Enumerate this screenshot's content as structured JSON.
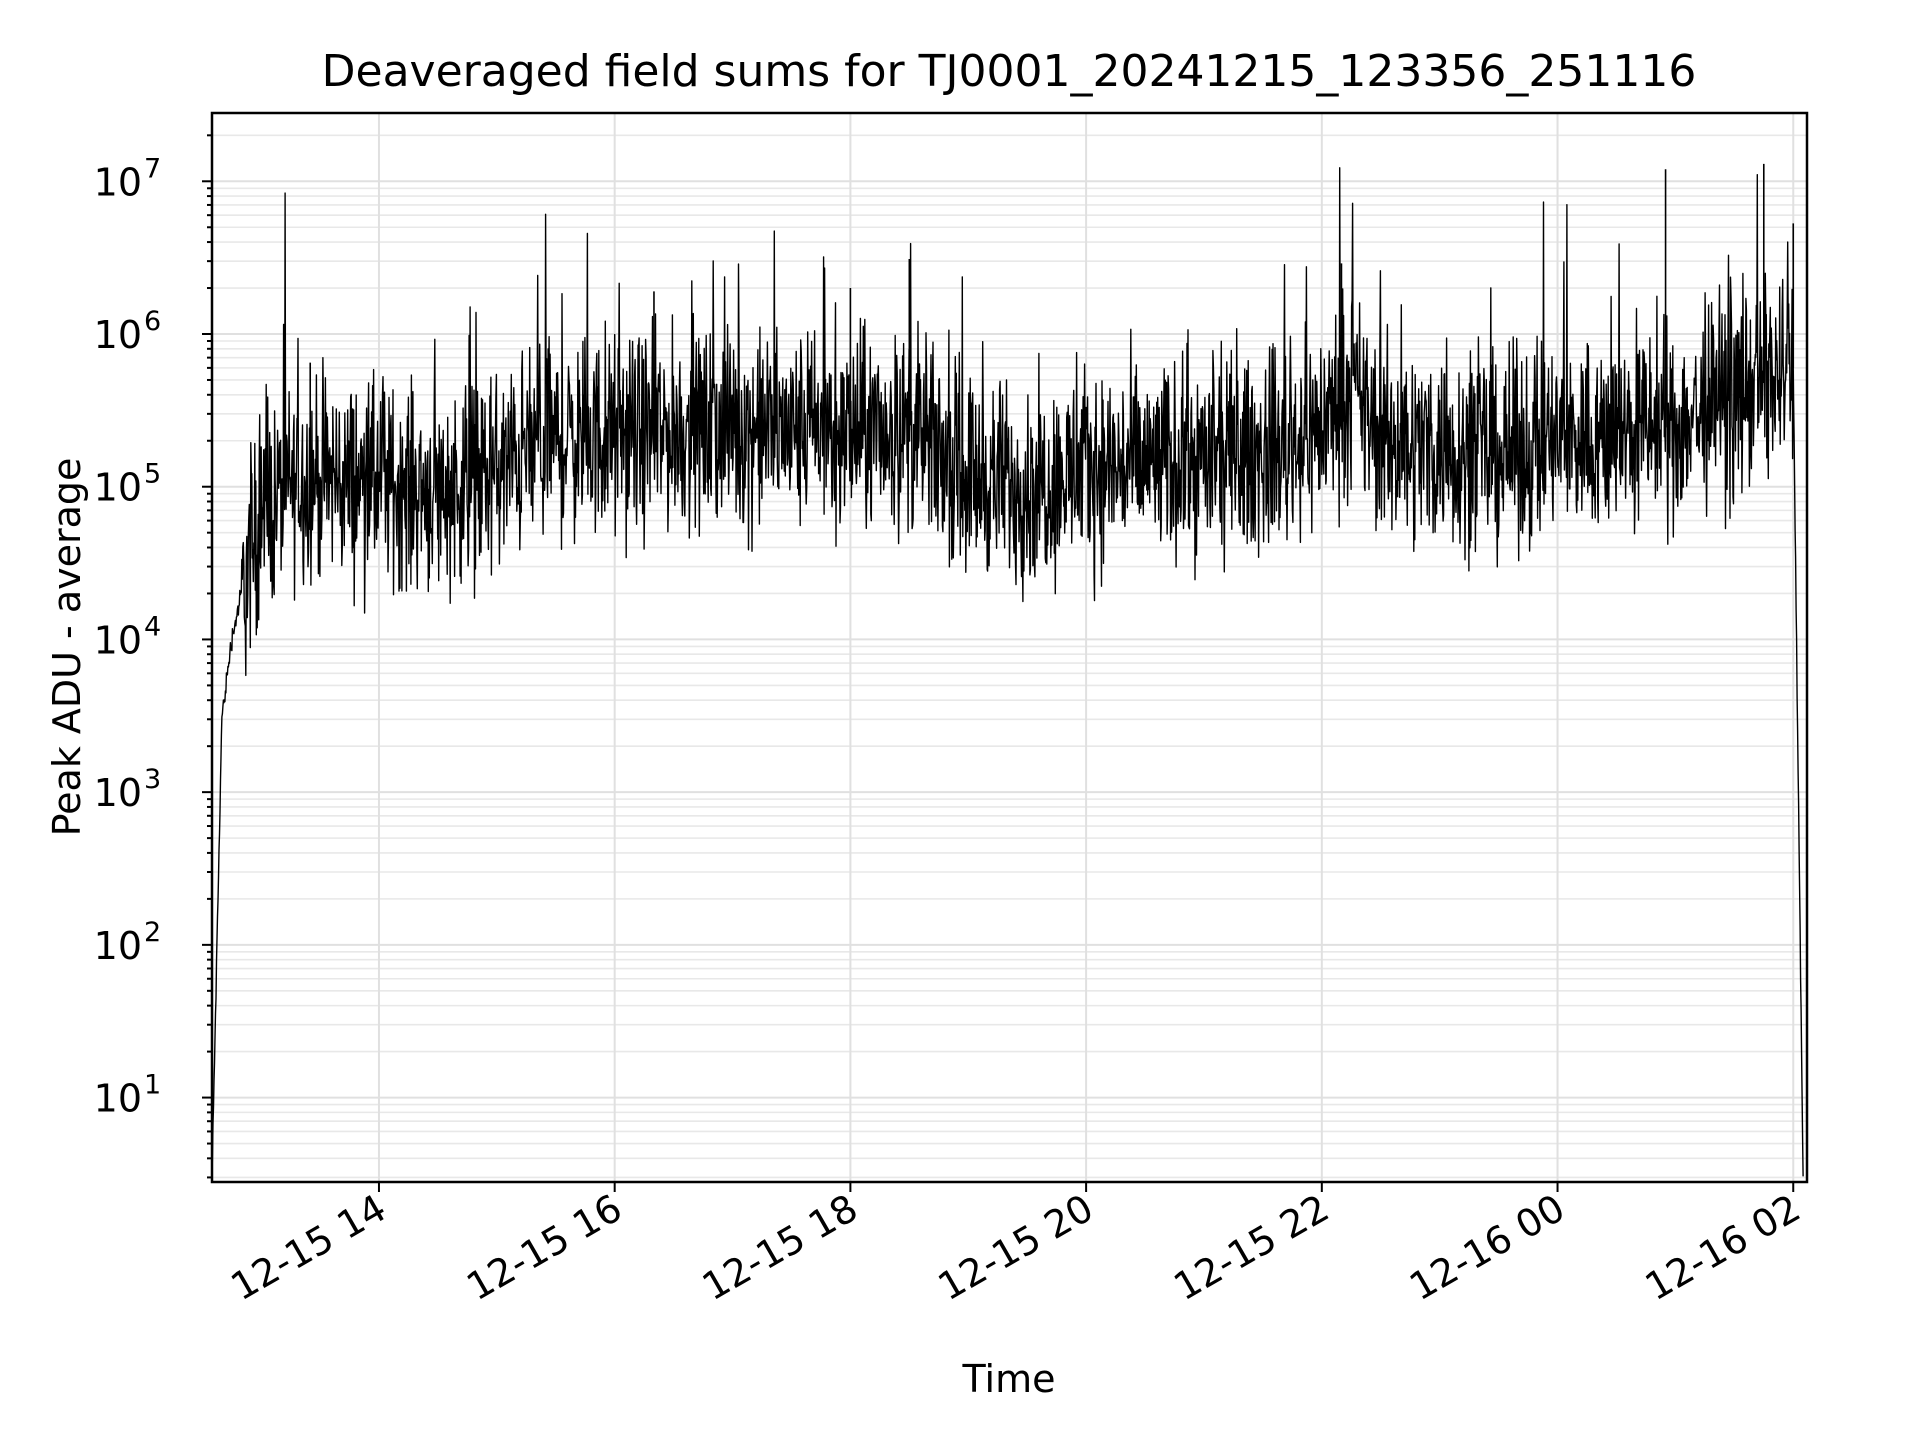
{
  "chart_data": {
    "type": "line",
    "title": "Deaveraged field sums for TJ0001_20241215_123356_251116",
    "xlabel": "Time",
    "ylabel": "Peak ADU - average",
    "yscale": "log",
    "grid": true,
    "x_ticks": [
      "12-15 14",
      "12-15 16",
      "12-15 18",
      "12-15 20",
      "12-15 22",
      "12-16 00",
      "12-16 02"
    ],
    "y_tick_exponents": [
      1,
      2,
      3,
      4,
      5,
      6,
      7
    ],
    "xlim": [
      "2024-12-15 12:35",
      "2024-12-16 02:07"
    ],
    "ylim": [
      2.8,
      28000000
    ],
    "series": [
      {
        "color": "#000000",
        "x": [
          "2024-12-15 12:35",
          "2024-12-15 12:40",
          "2024-12-15 12:45",
          "2024-12-15 12:50",
          "2024-12-15 13:00",
          "2024-12-15 13:10",
          "2024-12-15 13:20",
          "2024-12-15 13:30",
          "2024-12-15 13:45",
          "2024-12-15 14:00",
          "2024-12-15 14:15",
          "2024-12-15 14:30",
          "2024-12-15 14:45",
          "2024-12-15 15:00",
          "2024-12-15 15:15",
          "2024-12-15 15:30",
          "2024-12-15 16:00",
          "2024-12-15 16:30",
          "2024-12-15 17:00",
          "2024-12-15 17:30",
          "2024-12-15 18:00",
          "2024-12-15 18:30",
          "2024-12-15 19:00",
          "2024-12-15 19:30",
          "2024-12-15 20:00",
          "2024-12-15 20:30",
          "2024-12-15 21:00",
          "2024-12-15 21:30",
          "2024-12-15 22:00",
          "2024-12-15 22:15",
          "2024-12-15 22:30",
          "2024-12-15 23:00",
          "2024-12-15 23:30",
          "2024-12-16 00:00",
          "2024-12-16 00:30",
          "2024-12-16 01:00",
          "2024-12-16 01:30",
          "2024-12-16 02:00",
          "2024-12-16 02:05"
        ],
        "y": [
          3,
          3000,
          10000,
          20000,
          60000,
          90000,
          110000,
          115000,
          110000,
          105000,
          100000,
          95000,
          105000,
          120000,
          170000,
          200000,
          210000,
          230000,
          240000,
          230000,
          220000,
          230000,
          120000,
          100000,
          130000,
          140000,
          150000,
          160000,
          250000,
          450000,
          200000,
          180000,
          160000,
          200000,
          220000,
          250000,
          380000,
          600000,
          3
        ]
      }
    ],
    "peaks": {
      "x": [
        "2024-12-15 13:25",
        "2024-12-15 16:20",
        "2024-12-15 18:00",
        "2024-12-15 18:30",
        "2024-12-15 22:10",
        "2024-12-16 00:55",
        "2024-12-16 01:45",
        "2024-12-16 02:00"
      ],
      "y": [
        650000,
        1900000,
        2000000,
        3100000,
        2900000,
        12000000,
        13000000,
        5300000
      ]
    }
  }
}
